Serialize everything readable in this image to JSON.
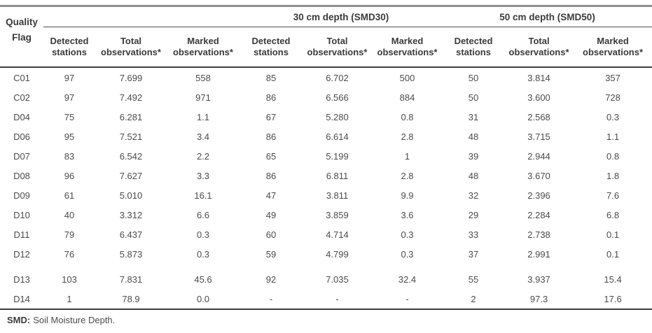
{
  "colors": {
    "top_rule": "#909090",
    "dark_rule": "#3e3e3e",
    "header_text": "#3a3a3a",
    "data_text": "#4b4b4b"
  },
  "table": {
    "corner_header": {
      "line1": "Quality",
      "line2": "Flag"
    },
    "group_headers": [
      {
        "label": ""
      },
      {
        "label": "30 cm depth (SMD30)"
      },
      {
        "label": "50 cm depth (SMD50)"
      }
    ],
    "column_headers": [
      {
        "top": "Detected",
        "bottom": "stations"
      },
      {
        "top": "Total",
        "bottom": "observations*"
      },
      {
        "top": "Marked",
        "bottom": "observations*"
      },
      {
        "top": "Detected",
        "bottom": "stations"
      },
      {
        "top": "Total",
        "bottom": "observations*"
      },
      {
        "top": "Marked",
        "bottom": "observations*"
      },
      {
        "top": "Detected",
        "bottom": "stations"
      },
      {
        "top": "Total",
        "bottom": "observations*"
      },
      {
        "top": "Marked",
        "bottom": "observations*"
      }
    ],
    "rows": [
      {
        "flag": "C01",
        "values": [
          "97",
          "7.699",
          "558",
          "85",
          "6.702",
          "500",
          "50",
          "3.814",
          "357"
        ]
      },
      {
        "flag": "C02",
        "values": [
          "97",
          "7.492",
          "971",
          "86",
          "6.566",
          "884",
          "50",
          "3.600",
          "728"
        ]
      },
      {
        "flag": "D04",
        "values": [
          "75",
          "6.281",
          "1.1",
          "67",
          "5.280",
          "0.8",
          "31",
          "2.568",
          "0.3"
        ]
      },
      {
        "flag": "D06",
        "values": [
          "95",
          "7.521",
          "3.4",
          "86",
          "6.614",
          "2.8",
          "48",
          "3.715",
          "1.1"
        ]
      },
      {
        "flag": "D07",
        "values": [
          "83",
          "6.542",
          "2.2",
          "65",
          "5.199",
          "1",
          "39",
          "2.944",
          "0.8"
        ]
      },
      {
        "flag": "D08",
        "values": [
          "96",
          "7.627",
          "3.3",
          "86",
          "6.811",
          "2.8",
          "48",
          "3.670",
          "1.8"
        ]
      },
      {
        "flag": "D09",
        "values": [
          "61",
          "5.010",
          "16.1",
          "47",
          "3.811",
          "9.9",
          "32",
          "2.396",
          "7.6"
        ]
      },
      {
        "flag": "D10",
        "values": [
          "40",
          "3.312",
          "6.6",
          "49",
          "3.859",
          "3.6",
          "29",
          "2.284",
          "6.8"
        ]
      },
      {
        "flag": "D11",
        "values": [
          "79",
          "6.437",
          "0.3",
          "60",
          "4.714",
          "0.3",
          "33",
          "2.738",
          "0.1"
        ]
      },
      {
        "flag": "D12",
        "values": [
          "76",
          "5.873",
          "0.3",
          "59",
          "4.799",
          "0.3",
          "37",
          "2.991",
          "0.1"
        ]
      },
      {
        "flag": "D13",
        "values": [
          "103",
          "7.831",
          "45.6",
          "92",
          "7.035",
          "32.4",
          "55",
          "3.937",
          "15.4"
        ]
      },
      {
        "flag": "D14",
        "values": [
          "1",
          "78.9",
          "0.0",
          "-",
          "-",
          "-",
          "2",
          "97.3",
          "17.6"
        ]
      }
    ],
    "footnote": {
      "term": "SMD:",
      "text": "Soil Moisture Depth."
    }
  }
}
